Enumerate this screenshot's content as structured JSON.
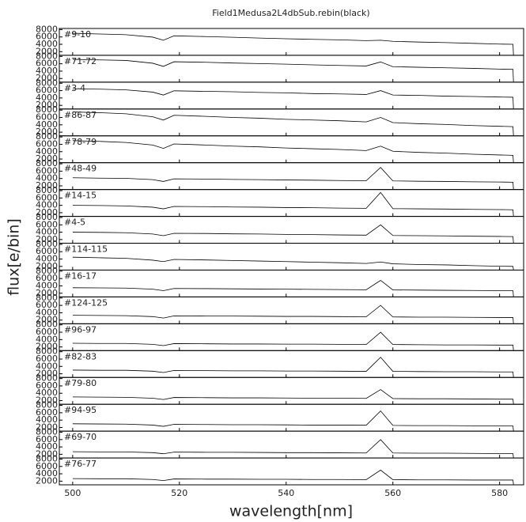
{
  "figure": {
    "title": "Field1Medusa2L4dbSub.rebin(black)",
    "xlabel": "wavelength[nm]",
    "ylabel": "flux[e/bin]",
    "xlim": [
      497.5,
      584.5
    ],
    "xticks": [
      500,
      520,
      540,
      560,
      580
    ]
  },
  "chart_data": [
    {
      "type": "line",
      "label": "#9-10",
      "color": "#000000",
      "ylim": [
        1000,
        8300
      ],
      "yticks": [
        2000,
        4000,
        6000,
        8000
      ],
      "x": [
        500,
        505,
        510,
        515,
        517,
        519,
        525,
        530,
        535,
        540,
        545,
        550,
        555,
        557.7,
        560,
        565,
        570,
        575,
        580,
        582.5,
        582.6
      ],
      "values": [
        7000,
        6800,
        6600,
        5950,
        5100,
        6300,
        6100,
        5900,
        5700,
        5500,
        5350,
        5200,
        5000,
        5100,
        4800,
        4600,
        4450,
        4250,
        4050,
        4000,
        1100
      ]
    },
    {
      "type": "line",
      "label": "#71-72",
      "color": "#000000",
      "ylim": [
        1000,
        8300
      ],
      "yticks": [
        2000,
        4000,
        6000,
        8000
      ],
      "x": [
        500,
        505,
        510,
        515,
        517,
        519,
        525,
        530,
        535,
        540,
        545,
        550,
        555,
        557.7,
        560,
        565,
        570,
        575,
        580,
        582.5,
        582.6
      ],
      "values": [
        7200,
        7050,
        6900,
        6150,
        5300,
        6550,
        6400,
        6200,
        6050,
        5900,
        5700,
        5550,
        5400,
        6500,
        5200,
        5050,
        4900,
        4750,
        4550,
        4500,
        1100
      ]
    },
    {
      "type": "line",
      "label": "#3-4",
      "color": "#000000",
      "ylim": [
        1000,
        8300
      ],
      "yticks": [
        2000,
        4000,
        6000,
        8000
      ],
      "x": [
        500,
        505,
        510,
        515,
        517,
        519,
        525,
        530,
        535,
        540,
        545,
        550,
        555,
        557.7,
        560,
        565,
        570,
        575,
        580,
        582.5,
        582.6
      ],
      "values": [
        6500,
        6400,
        6200,
        5600,
        4800,
        5950,
        5800,
        5700,
        5500,
        5400,
        5200,
        5100,
        4950,
        6000,
        4800,
        4700,
        4500,
        4400,
        4250,
        4200,
        1100
      ]
    },
    {
      "type": "line",
      "label": "#86-87",
      "color": "#000000",
      "ylim": [
        1000,
        8300
      ],
      "yticks": [
        2000,
        4000,
        6000,
        8000
      ],
      "x": [
        500,
        505,
        510,
        515,
        517,
        519,
        525,
        530,
        535,
        540,
        545,
        550,
        555,
        557.7,
        560,
        565,
        570,
        575,
        580,
        582.5,
        582.6
      ],
      "values": [
        7500,
        7300,
        7000,
        6200,
        5300,
        6600,
        6300,
        6000,
        5800,
        5500,
        5300,
        5100,
        4800,
        6000,
        4600,
        4300,
        4100,
        3800,
        3600,
        3500,
        1100
      ]
    },
    {
      "type": "line",
      "label": "#78-79",
      "color": "#000000",
      "ylim": [
        1000,
        8300
      ],
      "yticks": [
        2000,
        4000,
        6000,
        8000
      ],
      "x": [
        500,
        505,
        510,
        515,
        517,
        519,
        525,
        530,
        535,
        540,
        545,
        550,
        555,
        557.7,
        560,
        565,
        570,
        575,
        580,
        582.5,
        582.6
      ],
      "values": [
        7000,
        6800,
        6500,
        5800,
        4900,
        6100,
        5800,
        5500,
        5300,
        5000,
        4800,
        4600,
        4300,
        5500,
        4100,
        3800,
        3600,
        3300,
        3100,
        3000,
        1100
      ]
    },
    {
      "type": "line",
      "label": "#48-49",
      "color": "#000000",
      "ylim": [
        1000,
        8300
      ],
      "yticks": [
        2000,
        4000,
        6000,
        8000
      ],
      "x": [
        500,
        505,
        510,
        515,
        517,
        519,
        525,
        530,
        535,
        540,
        545,
        550,
        555,
        557.7,
        560,
        565,
        570,
        575,
        580,
        582.5,
        582.6
      ],
      "values": [
        4200,
        4100,
        4050,
        3700,
        3200,
        3900,
        3850,
        3750,
        3700,
        3600,
        3550,
        3450,
        3400,
        7000,
        3350,
        3250,
        3200,
        3100,
        3050,
        3000,
        1100
      ]
    },
    {
      "type": "line",
      "label": "#14-15",
      "color": "#000000",
      "ylim": [
        1000,
        8300
      ],
      "yticks": [
        2000,
        4000,
        6000,
        8000
      ],
      "x": [
        500,
        505,
        510,
        515,
        517,
        519,
        525,
        530,
        535,
        540,
        545,
        550,
        555,
        557.7,
        560,
        565,
        570,
        575,
        580,
        582.5,
        582.6
      ],
      "values": [
        4000,
        3950,
        3850,
        3500,
        3050,
        3700,
        3650,
        3550,
        3500,
        3400,
        3350,
        3250,
        3200,
        7500,
        3100,
        3050,
        3000,
        2900,
        2850,
        2800,
        1100
      ]
    },
    {
      "type": "line",
      "label": "#4-5",
      "color": "#000000",
      "ylim": [
        1000,
        8300
      ],
      "yticks": [
        2000,
        4000,
        6000,
        8000
      ],
      "x": [
        500,
        505,
        510,
        515,
        517,
        519,
        525,
        530,
        535,
        540,
        545,
        550,
        555,
        557.7,
        560,
        565,
        570,
        575,
        580,
        582.5,
        582.6
      ],
      "values": [
        4000,
        3950,
        3850,
        3500,
        3050,
        3700,
        3650,
        3550,
        3500,
        3400,
        3350,
        3250,
        3200,
        6000,
        3100,
        3050,
        3000,
        2900,
        2850,
        2800,
        1100
      ]
    },
    {
      "type": "line",
      "label": "#114-115",
      "color": "#000000",
      "ylim": [
        1000,
        8300
      ],
      "yticks": [
        2000,
        4000,
        6000,
        8000
      ],
      "x": [
        500,
        505,
        510,
        515,
        517,
        519,
        525,
        530,
        535,
        540,
        545,
        550,
        555,
        557.7,
        560,
        565,
        570,
        575,
        580,
        582.5,
        582.6
      ],
      "values": [
        4500,
        4350,
        4200,
        3700,
        3300,
        3900,
        3750,
        3600,
        3450,
        3300,
        3150,
        3000,
        2800,
        3200,
        2700,
        2500,
        2400,
        2200,
        2050,
        2000,
        1100
      ]
    },
    {
      "type": "line",
      "label": "#16-17",
      "color": "#000000",
      "ylim": [
        1000,
        8300
      ],
      "yticks": [
        2000,
        4000,
        6000,
        8000
      ],
      "x": [
        500,
        505,
        510,
        515,
        517,
        519,
        525,
        530,
        535,
        540,
        545,
        550,
        555,
        557.7,
        560,
        565,
        570,
        575,
        580,
        582.5,
        582.6
      ],
      "values": [
        3500,
        3450,
        3400,
        3100,
        2700,
        3300,
        3250,
        3200,
        3150,
        3100,
        3050,
        3000,
        2950,
        5500,
        2900,
        2850,
        2800,
        2750,
        2700,
        2700,
        1100
      ]
    },
    {
      "type": "line",
      "label": "#124-125",
      "color": "#000000",
      "ylim": [
        1000,
        8300
      ],
      "yticks": [
        2000,
        4000,
        6000,
        8000
      ],
      "x": [
        500,
        505,
        510,
        515,
        517,
        519,
        525,
        530,
        535,
        540,
        545,
        550,
        555,
        557.7,
        560,
        565,
        570,
        575,
        580,
        582.5,
        582.6
      ],
      "values": [
        3300,
        3250,
        3200,
        2950,
        2550,
        3150,
        3100,
        3100,
        3050,
        3000,
        3000,
        2950,
        2900,
        6000,
        2850,
        2800,
        2800,
        2750,
        2700,
        2700,
        1100
      ]
    },
    {
      "type": "line",
      "label": "#96-97",
      "color": "#000000",
      "ylim": [
        1000,
        8300
      ],
      "yticks": [
        2000,
        4000,
        6000,
        8000
      ],
      "x": [
        500,
        505,
        510,
        515,
        517,
        519,
        525,
        530,
        535,
        540,
        545,
        550,
        555,
        557.7,
        560,
        565,
        570,
        575,
        580,
        582.5,
        582.6
      ],
      "values": [
        3000,
        2950,
        2950,
        2700,
        2350,
        2900,
        2850,
        2800,
        2800,
        2750,
        2750,
        2700,
        2650,
        6000,
        2650,
        2600,
        2550,
        2550,
        2500,
        2500,
        1100
      ]
    },
    {
      "type": "line",
      "label": "#82-83",
      "color": "#000000",
      "ylim": [
        1000,
        8300
      ],
      "yticks": [
        2000,
        4000,
        6000,
        8000
      ],
      "x": [
        500,
        505,
        510,
        515,
        517,
        519,
        525,
        530,
        535,
        540,
        545,
        550,
        555,
        557.7,
        560,
        565,
        570,
        575,
        580,
        582.5,
        582.6
      ],
      "values": [
        3000,
        2950,
        2950,
        2700,
        2350,
        2900,
        2850,
        2800,
        2800,
        2750,
        2750,
        2700,
        2650,
        6500,
        2650,
        2600,
        2550,
        2550,
        2500,
        2500,
        1100
      ]
    },
    {
      "type": "line",
      "label": "#79-80",
      "color": "#000000",
      "ylim": [
        1000,
        8300
      ],
      "yticks": [
        2000,
        4000,
        6000,
        8000
      ],
      "x": [
        500,
        505,
        510,
        515,
        517,
        519,
        525,
        530,
        535,
        540,
        545,
        550,
        555,
        557.7,
        560,
        565,
        570,
        575,
        580,
        582.5,
        582.6
      ],
      "values": [
        3000,
        2950,
        2900,
        2650,
        2300,
        2850,
        2800,
        2750,
        2750,
        2700,
        2650,
        2650,
        2600,
        5000,
        2550,
        2500,
        2500,
        2450,
        2400,
        2400,
        1100
      ]
    },
    {
      "type": "line",
      "label": "#94-95",
      "color": "#000000",
      "ylim": [
        1000,
        8300
      ],
      "yticks": [
        2000,
        4000,
        6000,
        8000
      ],
      "x": [
        500,
        505,
        510,
        515,
        517,
        519,
        525,
        530,
        535,
        540,
        545,
        550,
        555,
        557.7,
        560,
        565,
        570,
        575,
        580,
        582.5,
        582.6
      ],
      "values": [
        3000,
        2950,
        2900,
        2650,
        2300,
        2850,
        2800,
        2750,
        2750,
        2700,
        2650,
        2650,
        2600,
        6500,
        2550,
        2500,
        2500,
        2450,
        2400,
        2400,
        1100
      ]
    },
    {
      "type": "line",
      "label": "#69-70",
      "color": "#000000",
      "ylim": [
        1000,
        8300
      ],
      "yticks": [
        2000,
        4000,
        6000,
        8000
      ],
      "x": [
        500,
        505,
        510,
        515,
        517,
        519,
        525,
        530,
        535,
        540,
        545,
        550,
        555,
        557.7,
        560,
        565,
        570,
        575,
        580,
        582.5,
        582.6
      ],
      "values": [
        2700,
        2650,
        2650,
        2450,
        2150,
        2600,
        2550,
        2550,
        2500,
        2450,
        2450,
        2400,
        2350,
        6000,
        2350,
        2300,
        2300,
        2250,
        2200,
        2200,
        1100
      ]
    },
    {
      "type": "line",
      "label": "#76-77",
      "color": "#000000",
      "ylim": [
        1000,
        8300
      ],
      "yticks": [
        2000,
        4000,
        6000,
        8000
      ],
      "x": [
        500,
        505,
        510,
        515,
        517,
        519,
        525,
        530,
        535,
        540,
        545,
        550,
        555,
        557.7,
        560,
        565,
        570,
        575,
        580,
        582.5,
        582.6
      ],
      "values": [
        2700,
        2650,
        2650,
        2450,
        2150,
        2600,
        2550,
        2550,
        2500,
        2500,
        2450,
        2450,
        2400,
        5000,
        2400,
        2350,
        2350,
        2300,
        2300,
        2300,
        1100
      ]
    }
  ]
}
